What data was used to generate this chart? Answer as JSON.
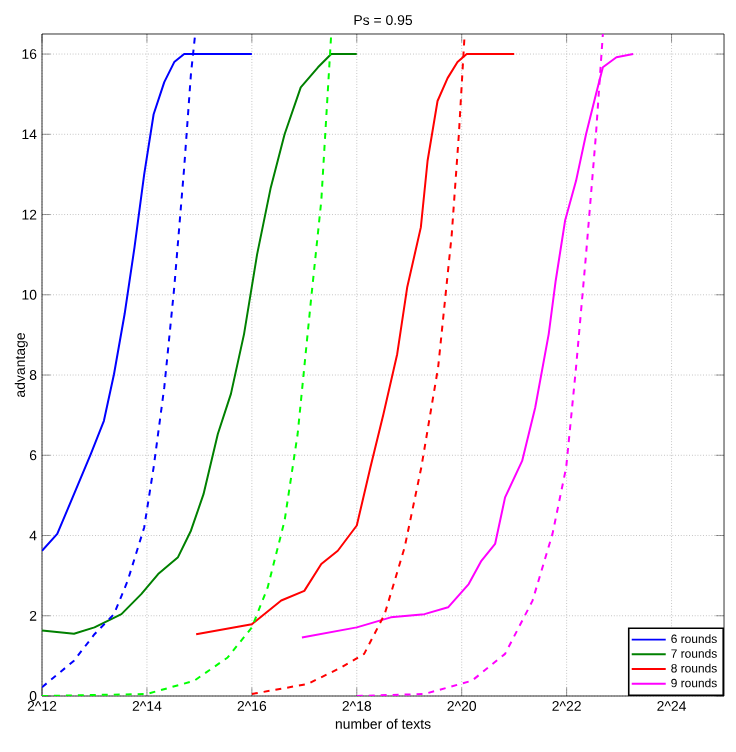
{
  "chart_data": {
    "type": "line",
    "title": "Ps = 0.95",
    "xlabel": "number of texts",
    "ylabel": "advantage",
    "log": "x",
    "xlim": [
      4096,
      33554432
    ],
    "ylim": [
      0,
      16.5
    ],
    "xticks": [
      {
        "value": 4096,
        "label": "2^12"
      },
      {
        "value": 16384,
        "label": "2^14"
      },
      {
        "value": 65536,
        "label": "2^16"
      },
      {
        "value": 262144,
        "label": "2^18"
      },
      {
        "value": 1048576,
        "label": "2^20"
      },
      {
        "value": 4194304,
        "label": "2^22"
      },
      {
        "value": 16777216,
        "label": "2^24"
      }
    ],
    "yticks": [
      0,
      2,
      4,
      6,
      8,
      10,
      12,
      14,
      16
    ],
    "grid": true,
    "legend": "bottom right",
    "marker": "none",
    "series": [
      {
        "name": "6 rounds",
        "color": "#0000ff",
        "line_style": "solid",
        "x": [
          4096,
          5010,
          6250,
          7800,
          9280,
          10600,
          12200,
          13900,
          15800,
          17900,
          20600,
          23500,
          26800,
          65536
        ],
        "values": [
          3.62,
          4.04,
          5.03,
          6.03,
          6.86,
          8.02,
          9.52,
          11.18,
          13.0,
          14.5,
          15.3,
          15.8,
          16,
          16
        ]
      },
      {
        "name": "7 rounds",
        "color": "#008000",
        "line_style": "solid",
        "x": [
          4096,
          6250,
          8192,
          11700,
          15200,
          19000,
          24700,
          29300,
          34600,
          41800,
          49700,
          59100,
          70200,
          84100,
          101000,
          125000,
          157000,
          187000,
          262144
        ],
        "values": [
          1.63,
          1.55,
          1.71,
          2.04,
          2.54,
          3.04,
          3.46,
          4.12,
          5.03,
          6.53,
          7.53,
          9.02,
          11.0,
          12.67,
          14.0,
          15.17,
          15.67,
          16,
          16
        ]
      },
      {
        "name": "8 rounds",
        "color": "#ff0000",
        "line_style": "solid",
        "x": [
          31400,
          65536,
          96600,
          131072,
          164000,
          204000,
          262144,
          314000,
          373000,
          447000,
          510000,
          611000,
          668000,
          762000,
          870000,
          992000,
          1120000,
          2097152
        ],
        "values": [
          1.54,
          1.79,
          2.38,
          2.62,
          3.29,
          3.62,
          4.25,
          5.7,
          7.03,
          8.52,
          10.18,
          11.68,
          13.34,
          14.83,
          15.4,
          15.8,
          16,
          16
        ]
      },
      {
        "name": "9 rounds",
        "color": "#ff00ff",
        "line_style": "solid",
        "x": [
          127000,
          262144,
          411000,
          641000,
          876000,
          1150000,
          1360000,
          1630000,
          1860000,
          2330000,
          2770000,
          3310000,
          3630000,
          4110000,
          4750000,
          5420000,
          6180000,
          6770000,
          8100000,
          10100000
        ],
        "values": [
          1.46,
          1.71,
          1.96,
          2.04,
          2.21,
          2.79,
          3.37,
          3.79,
          4.95,
          5.86,
          7.19,
          9.02,
          10.35,
          11.85,
          12.84,
          14.0,
          15.0,
          15.67,
          15.92,
          16
        ]
      },
      {
        "color": "#0000ff",
        "line_style": "dashed",
        "x": [
          4096,
          6250,
          8192,
          10600,
          12700,
          15800,
          17900,
          20600,
          23500,
          26800,
          29300,
          31000
        ],
        "values": [
          0.22,
          0.88,
          1.54,
          2.04,
          2.87,
          4.2,
          5.7,
          7.69,
          10.18,
          13.17,
          15.5,
          16.5
        ]
      },
      {
        "color": "#00ff00",
        "line_style": "dashed",
        "x": [
          4096,
          16384,
          30600,
          47600,
          65536,
          80700,
          101000,
          120000,
          143000,
          164000,
          187000
        ],
        "values": [
          0,
          0.05,
          0.38,
          0.96,
          1.71,
          2.7,
          4.37,
          6.53,
          9.85,
          12.34,
          16.5
        ]
      },
      {
        "color": "#ff0000",
        "line_style": "dashed",
        "x": [
          65536,
          137000,
          213000,
          289000,
          379000,
          493000,
          615000,
          768000,
          919000,
          1010000,
          1090000
        ],
        "values": [
          0.05,
          0.3,
          0.71,
          1.05,
          2.04,
          3.7,
          5.7,
          8.19,
          11.5,
          14.0,
          16.5
        ]
      },
      {
        "color": "#ff00ff",
        "line_style": "dashed",
        "x": [
          262144,
          641000,
          1200000,
          1860000,
          2670000,
          3480000,
          4170000,
          4750000,
          5420000,
          6180000,
          6770000
        ],
        "values": [
          0,
          0.05,
          0.38,
          1.05,
          2.37,
          4.04,
          5.7,
          8.19,
          11.0,
          14.0,
          16.5
        ]
      }
    ]
  }
}
